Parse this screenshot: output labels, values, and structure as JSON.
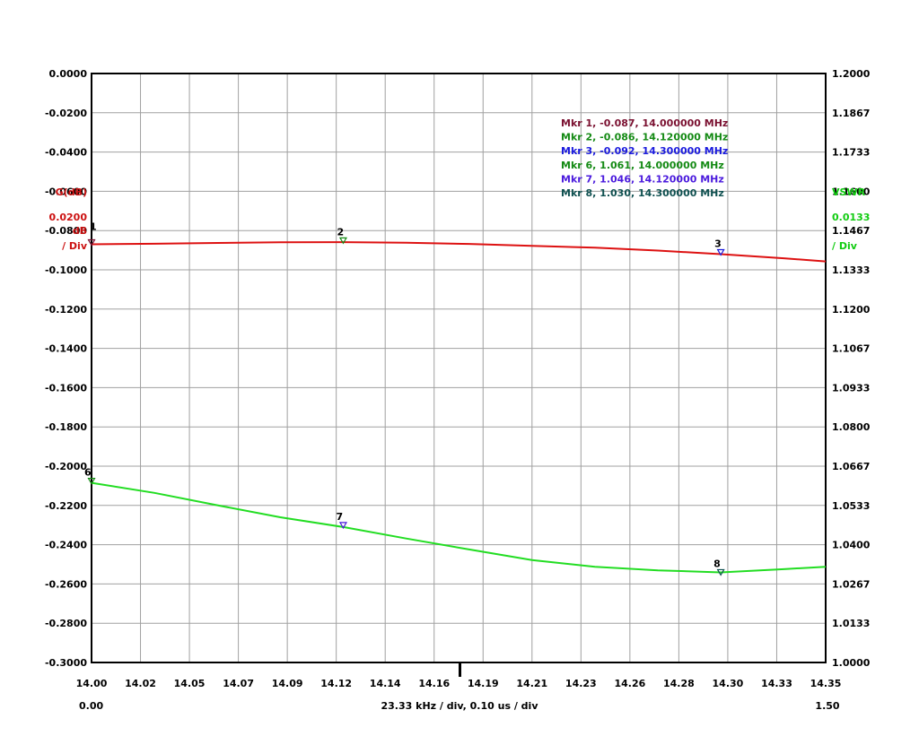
{
  "chart_data": {
    "type": "line",
    "x_ticks": [
      "14.00",
      "14.02",
      "14.05",
      "14.07",
      "14.09",
      "14.12",
      "14.14",
      "14.16",
      "14.19",
      "14.21",
      "14.23",
      "14.26",
      "14.28",
      "14.30",
      "14.33",
      "14.35"
    ],
    "xlim": [
      14.0,
      14.35
    ],
    "x_sub_left": "0.00",
    "x_sub_right": "1.50",
    "x_center_label": "23.33 kHz / div, 0.10 us / div",
    "left_axis": {
      "title": "G(dB)",
      "unit": "dB",
      "scale": "0.0200",
      "per_div": "/ Div",
      "ylim": [
        -0.3,
        0.0
      ],
      "ticks": [
        "0.0000",
        "-0.0200",
        "-0.0400",
        "-0.0600",
        "-0.0800",
        "-0.1000",
        "-0.1200",
        "-0.1400",
        "-0.1600",
        "-0.1800",
        "-0.2000",
        "-0.2200",
        "-0.2400",
        "-0.2600",
        "-0.2800",
        "-0.3000"
      ]
    },
    "right_axis": {
      "title": "VSWR",
      "scale": "0.0133",
      "per_div": "/ Div",
      "ylim": [
        1.0,
        1.2
      ],
      "ticks": [
        "1.2000",
        "1.1867",
        "1.1733",
        "1.1600",
        "1.1467",
        "1.1333",
        "1.1200",
        "1.1067",
        "1.0933",
        "1.0800",
        "1.0667",
        "1.0533",
        "1.0400",
        "1.0267",
        "1.0133",
        "1.0000"
      ]
    },
    "series": [
      {
        "axis": "left",
        "color": "#dd1111",
        "x": [
          14.0,
          14.03,
          14.06,
          14.09,
          14.12,
          14.15,
          14.18,
          14.21,
          14.24,
          14.27,
          14.3,
          14.33,
          14.35
        ],
        "y": [
          -0.087,
          -0.0867,
          -0.0863,
          -0.086,
          -0.0859,
          -0.0862,
          -0.0868,
          -0.0878,
          -0.0887,
          -0.0902,
          -0.092,
          -0.0941,
          -0.0957
        ]
      },
      {
        "axis": "right",
        "color": "#22dd22",
        "x": [
          14.0,
          14.03,
          14.06,
          14.09,
          14.12,
          14.15,
          14.18,
          14.21,
          14.24,
          14.27,
          14.3,
          14.33,
          14.35
        ],
        "y": [
          1.061,
          1.0576,
          1.0534,
          1.0493,
          1.046,
          1.0421,
          1.0384,
          1.0348,
          1.0325,
          1.0313,
          1.0306,
          1.0317,
          1.0325
        ]
      }
    ],
    "markers": [
      {
        "num": "1",
        "axis": "left",
        "x": 14.0,
        "y": -0.087,
        "color": "#7a1030",
        "label_dx": -2,
        "label_dy": -16
      },
      {
        "num": "2",
        "axis": "left",
        "x": 14.12,
        "y": -0.086,
        "color": "#148a14",
        "label_dx": -7,
        "label_dy": -8
      },
      {
        "num": "3",
        "axis": "left",
        "x": 14.3,
        "y": -0.092,
        "color": "#1a1add",
        "label_dx": -7,
        "label_dy": -8
      },
      {
        "num": "6",
        "axis": "right",
        "x": 14.0,
        "y": 1.061,
        "color": "#148a14",
        "label_dx": -8,
        "label_dy": -8
      },
      {
        "num": "7",
        "axis": "right",
        "x": 14.12,
        "y": 1.046,
        "color": "#4a1add",
        "label_dx": -8,
        "label_dy": -8
      },
      {
        "num": "8",
        "axis": "right",
        "x": 14.3,
        "y": 1.03,
        "color": "#0f5050",
        "label_dx": -8,
        "label_dy": -8
      }
    ],
    "marker_legend": [
      {
        "text": "Mkr 1, -0.087, 14.000000 MHz",
        "color": "#7a1030"
      },
      {
        "text": "Mkr 2, -0.086, 14.120000 MHz",
        "color": "#148a14"
      },
      {
        "text": "Mkr 3, -0.092, 14.300000 MHz",
        "color": "#1a1add"
      },
      {
        "text": "Mkr 6, 1.061, 14.000000 MHz",
        "color": "#148a14"
      },
      {
        "text": "Mkr 7, 1.046, 14.120000 MHz",
        "color": "#4a1add"
      },
      {
        "text": "Mkr 8, 1.030, 14.300000 MHz",
        "color": "#0f5050"
      }
    ],
    "colors": {
      "left_axis_label": "#cc1111",
      "right_axis_label": "#11cc11",
      "grid": "#a0a0a0"
    },
    "grid": true
  }
}
